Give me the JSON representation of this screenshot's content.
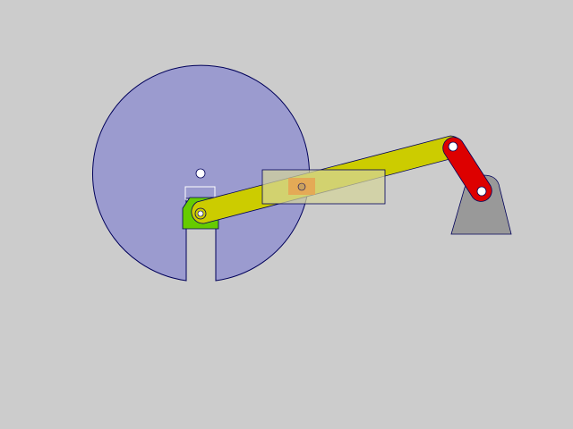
{
  "colors": {
    "background": "#cccccc",
    "wheel_fill": "#9b9bcf",
    "wheel_stroke": "#00005a",
    "slider_block": "#66cc00",
    "coupler_rod": "#cccc00",
    "crank_link": "#dd0000",
    "ground_support": "#999999",
    "guide_frame": "#d4d49a",
    "pivot_hole": "#ffffff",
    "coupler_pin": "#e8a050"
  },
  "mechanism": {
    "parts": [
      "slotted-disc",
      "slider-block",
      "coupler-rod",
      "sliding-guide",
      "crank-link",
      "ground-support"
    ]
  }
}
